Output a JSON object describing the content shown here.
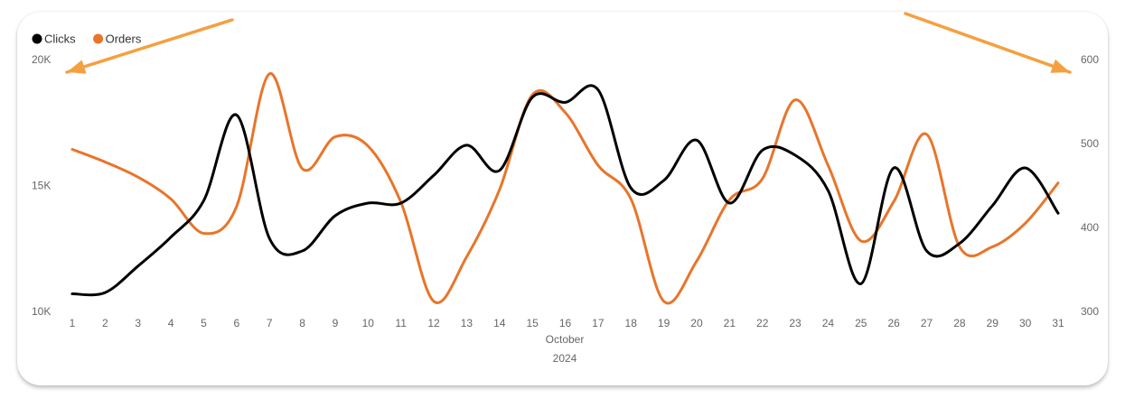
{
  "chart_data": {
    "type": "line",
    "legend_position": "top-left",
    "x": [
      "1",
      "2",
      "3",
      "4",
      "5",
      "6",
      "7",
      "8",
      "9",
      "10",
      "11",
      "12",
      "13",
      "14",
      "15",
      "16",
      "17",
      "18",
      "19",
      "20",
      "21",
      "22",
      "23",
      "24",
      "25",
      "26",
      "27",
      "28",
      "29",
      "30",
      "31"
    ],
    "xlabel": "October",
    "xlabel2": "2024",
    "y_left": {
      "ticks": [
        "10K",
        "15K",
        "20K"
      ],
      "ylim": [
        10000,
        20000
      ]
    },
    "y_right": {
      "ticks": [
        "300",
        "400",
        "500",
        "600"
      ],
      "ylim": [
        300,
        600
      ]
    },
    "series": [
      {
        "name": "Clicks",
        "axis": "left",
        "color": "#000000",
        "values": [
          10700,
          10750,
          11800,
          12950,
          14400,
          17800,
          12900,
          12400,
          13800,
          14300,
          14300,
          15400,
          16600,
          15600,
          18500,
          18300,
          18800,
          14900,
          15200,
          16800,
          14300,
          16400,
          16200,
          14800,
          11100,
          15700,
          12400,
          12700,
          14200,
          15700,
          13900
        ]
      },
      {
        "name": "Orders",
        "axis": "right",
        "color": "#E8752A",
        "values": [
          493,
          478,
          460,
          434,
          393,
          425,
          583,
          470,
          508,
          497,
          430,
          312,
          365,
          445,
          558,
          537,
          474,
          434,
          312,
          360,
          433,
          458,
          552,
          474,
          384,
          431,
          511,
          377,
          377,
          405,
          453
        ]
      }
    ],
    "annotations": [
      {
        "type": "arrow",
        "color": "#F5A040",
        "points_to": "left axis max (20K)"
      },
      {
        "type": "arrow",
        "color": "#F5A040",
        "points_to": "right axis max (600)"
      }
    ]
  }
}
